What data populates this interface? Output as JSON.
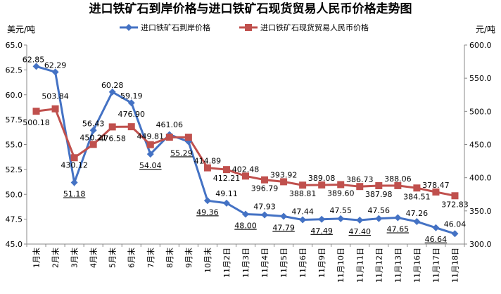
{
  "chart_data": {
    "type": "line",
    "title": "进口铁矿石到岸价格与进口铁矿石现货贸易人民币价格走势图",
    "left_axis_label": "美元/吨",
    "right_axis_label": "元/吨",
    "categories": [
      "1月末",
      "2月末",
      "3月末",
      "4月末",
      "5月末",
      "6月末",
      "7月末",
      "8月末",
      "9月末",
      "10月末",
      "11月2日",
      "11月3日",
      "11月4日",
      "11月5日",
      "11月6日",
      "11月9日",
      "11月10日",
      "11月11日",
      "11月12日",
      "11月13日",
      "11月16日",
      "11月17日",
      "11月18日"
    ],
    "left_ylim": [
      45.0,
      65.0
    ],
    "left_yticks": [
      "45.0",
      "47.5",
      "50.0",
      "52.5",
      "55.0",
      "57.5",
      "60.0",
      "62.5",
      "65.0"
    ],
    "right_ylim": [
      300.0,
      600.0
    ],
    "right_yticks": [
      "300.0",
      "350.0",
      "400.0",
      "450.0",
      "500.0",
      "550.0",
      "600.0"
    ],
    "series": [
      {
        "name": "进口铁矿石到岸价格",
        "axis": "left",
        "color": "#4472C4",
        "marker": "diamond",
        "values": [
          62.85,
          62.29,
          51.18,
          56.43,
          60.28,
          59.19,
          54.04,
          56.0,
          55.29,
          49.36,
          49.11,
          48.0,
          47.93,
          47.79,
          47.44,
          47.49,
          47.55,
          47.4,
          47.56,
          47.65,
          47.26,
          46.64,
          46.04
        ],
        "labels": [
          "62.85",
          "62.29",
          "51.18",
          "56.43",
          "60.28",
          "59.19",
          "54.04",
          "",
          "55.29",
          "49.36",
          "49.11",
          "48.00",
          "47.93",
          "47.79",
          "47.44",
          "47.49",
          "47.55",
          "47.40",
          "47.56",
          "47.65",
          "47.26",
          "46.64",
          "46.04"
        ]
      },
      {
        "name": "进口铁矿石现货贸易人民币价格",
        "axis": "right",
        "color": "#C0504D",
        "marker": "square",
        "values": [
          500.18,
          503.84,
          430.12,
          450.21,
          476.58,
          476.9,
          449.81,
          461.06,
          461.06,
          414.89,
          412.21,
          402.48,
          396.79,
          393.92,
          388.81,
          389.08,
          389.6,
          386.73,
          387.98,
          388.06,
          384.51,
          378.47,
          372.83
        ],
        "labels": [
          "500.18",
          "503.84",
          "430.12",
          "450.21",
          "476.58",
          "476.90",
          "449.81",
          "461.06",
          "",
          "414.89",
          "412.21",
          "402.48",
          "396.79",
          "393.92",
          "388.81",
          "389.08",
          "389.60",
          "386.73",
          "387.98",
          "388.06",
          "384.51",
          "378.47",
          "372.83"
        ]
      }
    ],
    "grid": false,
    "legend_position": "top"
  }
}
